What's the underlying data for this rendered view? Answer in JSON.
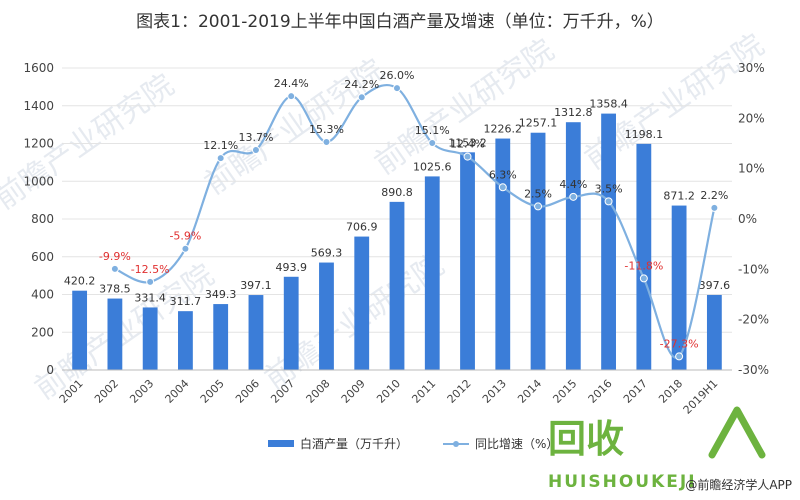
{
  "chart_data": {
    "type": "bar+line",
    "title": "图表1：2001-2019上半年中国白酒产量及增速（单位：万千升，%）",
    "categories": [
      "2001",
      "2002",
      "2003",
      "2004",
      "2005",
      "2006",
      "2007",
      "2008",
      "2009",
      "2010",
      "2011",
      "2012",
      "2013",
      "2014",
      "2015",
      "2016",
      "2017",
      "2018",
      "2019H1"
    ],
    "series": [
      {
        "name": "白酒产量（万千升）",
        "type": "bar",
        "axis": "left",
        "color": "#3b7dd8",
        "values": [
          420.2,
          378.5,
          331.4,
          311.7,
          349.3,
          397.1,
          493.9,
          569.3,
          706.9,
          890.8,
          1025.6,
          1153.2,
          1226.2,
          1257.1,
          1312.8,
          1358.4,
          1198.1,
          871.2,
          397.6
        ],
        "labels": [
          "420.2",
          "378.5",
          "331.4",
          "311.7",
          "349.3",
          "397.1",
          "493.9",
          "569.3",
          "706.9",
          "890.8",
          "1025.6",
          "1153.2",
          "1226.2",
          "1257.1",
          "1312.8",
          "1358.4",
          "1198.1",
          "871.2",
          "397.6"
        ]
      },
      {
        "name": "同比增速（%）",
        "type": "line",
        "axis": "right",
        "color": "#7fb0e0",
        "values": [
          null,
          -9.9,
          -12.5,
          -5.9,
          12.1,
          13.7,
          24.4,
          15.3,
          24.2,
          26.0,
          15.1,
          12.4,
          6.3,
          2.5,
          4.4,
          3.5,
          -11.8,
          -27.3,
          2.2
        ],
        "labels": [
          "",
          "-9.9%",
          "-12.5%",
          "-5.9%",
          "12.1%",
          "13.7%",
          "24.4%",
          "15.3%",
          "24.2%",
          "26.0%",
          "15.1%",
          "12.4%",
          "6.3%",
          "2.5%",
          "4.4%",
          "3.5%",
          "-11.8%",
          "-27.3%",
          "2.2%"
        ]
      }
    ],
    "y_left": {
      "min": 0,
      "max": 1600,
      "ticks": [
        "0",
        "200",
        "400",
        "600",
        "800",
        "1000",
        "1200",
        "1400",
        "1600"
      ]
    },
    "y_right": {
      "min": -30,
      "max": 30,
      "ticks": [
        "-30%",
        "-20%",
        "-10%",
        "0%",
        "10%",
        "20%",
        "30%"
      ]
    },
    "negative_label_color": "#e03030",
    "legend": {
      "position": "bottom",
      "items": [
        "白酒产量（万千升）",
        "同比增速（%）"
      ]
    }
  },
  "watermark": "前瞻产业研究院",
  "credit": "@前瞻经济学人APP",
  "logo": {
    "big": "回收",
    "small": "HUISHOUKEJI"
  }
}
